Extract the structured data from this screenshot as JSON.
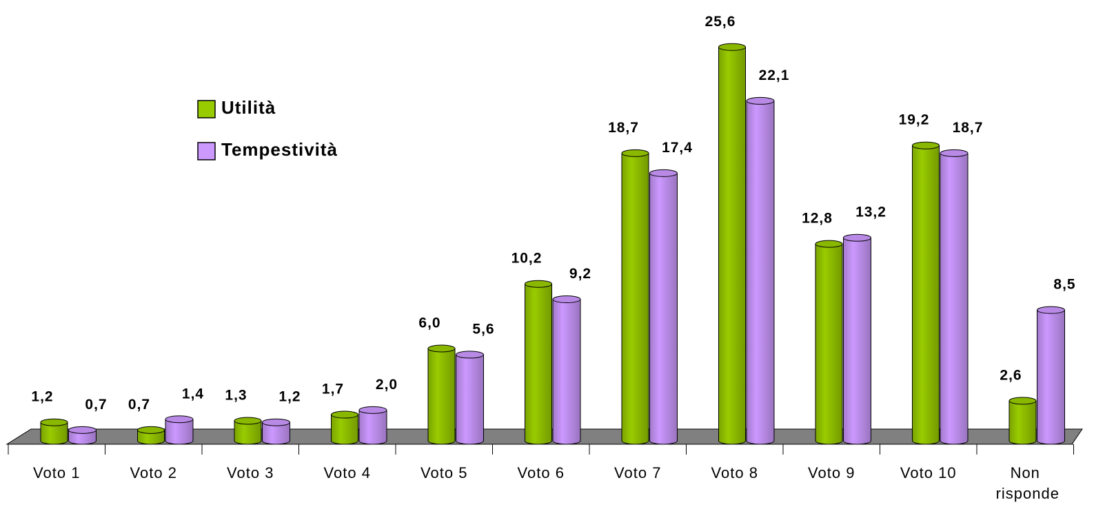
{
  "chart_data": {
    "type": "bar",
    "categories": [
      "Voto 1",
      "Voto 2",
      "Voto 3",
      "Voto 4",
      "Voto 5",
      "Voto 6",
      "Voto 7",
      "Voto 8",
      "Voto 9",
      "Voto 10",
      "Non risponde"
    ],
    "series": [
      {
        "name": "Utilità",
        "color": "#99cc00",
        "values": [
          1.2,
          0.7,
          1.3,
          1.7,
          6.0,
          10.2,
          18.7,
          25.6,
          12.8,
          19.2,
          2.6
        ],
        "value_labels": [
          "1,2",
          "0,7",
          "1,3",
          "1,7",
          "6,0",
          "10,2",
          "18,7",
          "25,6",
          "12,8",
          "19,2",
          "2,6"
        ]
      },
      {
        "name": "Tempestività",
        "color": "#cc99ff",
        "values": [
          0.7,
          1.4,
          1.2,
          2.0,
          5.6,
          9.2,
          17.4,
          22.1,
          13.2,
          18.7,
          8.5
        ],
        "value_labels": [
          "0,7",
          "1,4",
          "1,2",
          "2,0",
          "5,6",
          "9,2",
          "17,4",
          "22,1",
          "13,2",
          "18,7",
          "8,5"
        ]
      }
    ],
    "ylim": [
      0,
      27
    ],
    "legend": "upper left"
  }
}
